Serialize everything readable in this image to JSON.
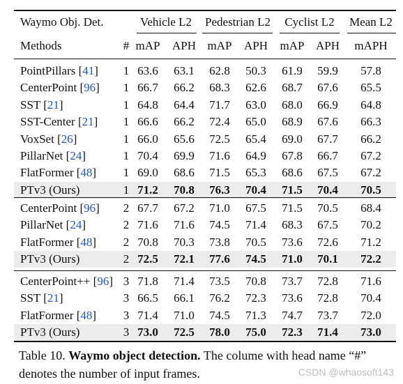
{
  "table": {
    "corner_label": "Waymo Obj. Det.",
    "groups": [
      {
        "label": "Vehicle L2"
      },
      {
        "label": "Pedestrian L2"
      },
      {
        "label": "Cyclist L2"
      },
      {
        "label": "Mean L2"
      }
    ],
    "subheaders": [
      "Methods",
      "#",
      "mAP",
      "APH",
      "mAP",
      "APH",
      "mAP",
      "APH",
      "mAPH"
    ],
    "sections": [
      {
        "rows": [
          {
            "method": "PointPillars",
            "ref": "41",
            "frames": "1",
            "values": [
              "63.6",
              "63.1",
              "62.8",
              "50.3",
              "61.9",
              "59.9",
              "57.8"
            ],
            "ours": false
          },
          {
            "method": "CenterPoint",
            "ref": "96",
            "frames": "1",
            "values": [
              "66.7",
              "66.2",
              "68.3",
              "62.6",
              "68.7",
              "67.6",
              "65.5"
            ],
            "ours": false
          },
          {
            "method": "SST",
            "ref": "21",
            "frames": "1",
            "values": [
              "64.8",
              "64.4",
              "71.7",
              "63.0",
              "68.0",
              "66.9",
              "64.8"
            ],
            "ours": false
          },
          {
            "method": "SST-Center",
            "ref": "21",
            "frames": "1",
            "values": [
              "66.6",
              "66.2",
              "72.4",
              "65.0",
              "68.9",
              "67.6",
              "66.3"
            ],
            "ours": false
          },
          {
            "method": "VoxSet",
            "ref": "26",
            "frames": "1",
            "values": [
              "66.0",
              "65.6",
              "72.5",
              "65.4",
              "69.0",
              "67.7",
              "66.2"
            ],
            "ours": false
          },
          {
            "method": "PillarNet",
            "ref": "24",
            "frames": "1",
            "values": [
              "70.4",
              "69.9",
              "71.6",
              "64.9",
              "67.8",
              "66.7",
              "67.2"
            ],
            "ours": false
          },
          {
            "method": "FlatFormer",
            "ref": "48",
            "frames": "1",
            "values": [
              "69.0",
              "68.6",
              "71.5",
              "65.3",
              "68.6",
              "67.5",
              "67.2"
            ],
            "ours": false
          },
          {
            "method": "PTv3 (Ours)",
            "ref": "",
            "frames": "1",
            "values": [
              "71.2",
              "70.8",
              "76.3",
              "70.4",
              "71.5",
              "70.4",
              "70.5"
            ],
            "ours": true
          }
        ]
      },
      {
        "rows": [
          {
            "method": "CenterPoint",
            "ref": "96",
            "frames": "2",
            "values": [
              "67.7",
              "67.2",
              "71.0",
              "67.5",
              "71.5",
              "70.5",
              "68.4"
            ],
            "ours": false
          },
          {
            "method": "PillarNet",
            "ref": "24",
            "frames": "2",
            "values": [
              "71.6",
              "71.6",
              "74.5",
              "71.4",
              "68.3",
              "67.5",
              "70.2"
            ],
            "ours": false
          },
          {
            "method": "FlatFormer",
            "ref": "48",
            "frames": "2",
            "values": [
              "70.8",
              "70.3",
              "73.8",
              "70.5",
              "73.6",
              "72.6",
              "71.2"
            ],
            "ours": false
          },
          {
            "method": "PTv3 (Ours)",
            "ref": "",
            "frames": "2",
            "values": [
              "72.5",
              "72.1",
              "77.6",
              "74.5",
              "71.0",
              "70.1",
              "72.2"
            ],
            "ours": true
          }
        ]
      },
      {
        "rows": [
          {
            "method": "CenterPoint++",
            "ref": "96",
            "frames": "3",
            "values": [
              "71.8",
              "71.4",
              "73.5",
              "70.8",
              "73.7",
              "72.8",
              "71.6"
            ],
            "ours": false
          },
          {
            "method": "SST",
            "ref": "21",
            "frames": "3",
            "values": [
              "66.5",
              "66.1",
              "76.2",
              "72.3",
              "73.6",
              "72.8",
              "70.4"
            ],
            "ours": false
          },
          {
            "method": "FlatFormer",
            "ref": "48",
            "frames": "3",
            "values": [
              "71.4",
              "71.0",
              "74.5",
              "71.3",
              "74.7",
              "73.7",
              "72.0"
            ],
            "ours": false
          },
          {
            "method": "PTv3 (Ours)",
            "ref": "",
            "frames": "3",
            "values": [
              "73.0",
              "72.5",
              "78.0",
              "75.0",
              "72.3",
              "71.4",
              "73.0"
            ],
            "ours": true
          }
        ]
      }
    ]
  },
  "caption": {
    "label": "Table 10.",
    "title": "Waymo object detection.",
    "text": "The colume with head name “#” denotes the number of input frames."
  },
  "watermark": "CSDN @whaosoft143",
  "colors": {
    "highlight_row": "#ececec",
    "citation": "#1f56c4"
  }
}
